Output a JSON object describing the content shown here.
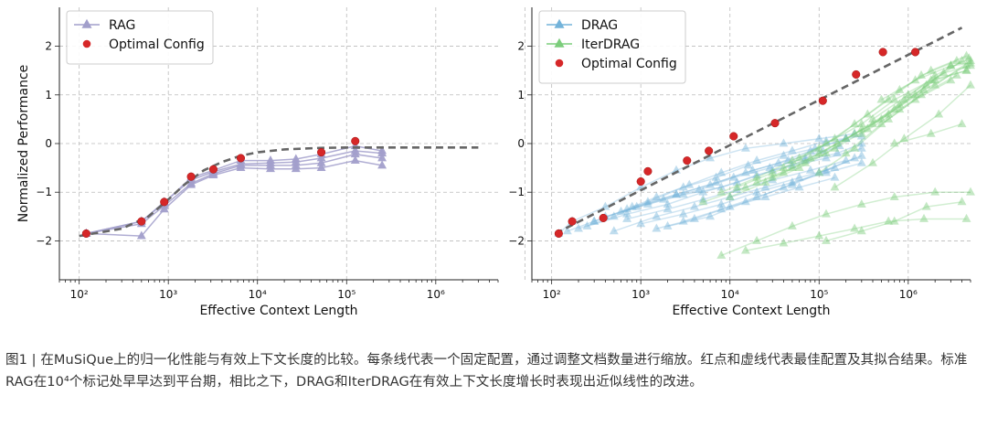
{
  "caption": "图1 | 在MuSiQue上的归一化性能与有效上下文长度的比较。每条线代表一个固定配置，通过调整文档数量进行缩放。红点和虚线代表最佳配置及其拟合结果。标准RAG在10⁴个标记处早早达到平台期，相比之下，DRAG和IterDRAG在有效上下文长度增长时表现出近似线性的改进。",
  "colors": {
    "rag": "#a29fcb",
    "drag": "#73b3da",
    "iterdrag": "#7ccd7c",
    "optimal": "#d62728",
    "fit": "#666666"
  },
  "chart_data": [
    {
      "type": "line",
      "xlabel": "Effective Context Length",
      "ylabel": "Normalized Performance",
      "xscale": "log",
      "xticks": [
        "10²",
        "10³",
        "10⁴",
        "10⁵",
        "10⁶"
      ],
      "yticks": [
        "−2",
        "−1",
        "0",
        "1",
        "2"
      ],
      "ylim": [
        -2.8,
        2.8
      ],
      "xlim": [
        60,
        5000000
      ],
      "grid": true,
      "legend": {
        "position": "top-left",
        "entries": [
          "RAG",
          "Optimal Config"
        ]
      },
      "series": [
        {
          "name": "RAG",
          "lines": [
            {
              "x": [
                120,
                500,
                900,
                1800,
                3200,
                6500,
                14000,
                27000,
                52000,
                125000,
                250000
              ],
              "y": [
                -1.85,
                -1.9,
                -1.35,
                -0.85,
                -0.65,
                -0.5,
                -0.52,
                -0.52,
                -0.5,
                -0.35,
                -0.45
              ]
            },
            {
              "x": [
                120,
                500,
                900,
                1800,
                3200,
                6500,
                14000,
                27000,
                52000,
                125000,
                250000
              ],
              "y": [
                -1.85,
                -1.65,
                -1.28,
                -0.82,
                -0.62,
                -0.45,
                -0.45,
                -0.45,
                -0.4,
                -0.22,
                -0.3
              ]
            },
            {
              "x": [
                120,
                500,
                900,
                1800,
                3200,
                6500,
                14000,
                27000,
                52000,
                125000,
                250000
              ],
              "y": [
                -1.85,
                -1.6,
                -1.2,
                -0.75,
                -0.58,
                -0.42,
                -0.4,
                -0.38,
                -0.3,
                -0.15,
                -0.2
              ]
            },
            {
              "x": [
                120,
                500,
                900,
                1800,
                3200,
                6500,
                14000,
                27000,
                52000,
                125000,
                250000
              ],
              "y": [
                -1.85,
                -1.6,
                -1.22,
                -0.7,
                -0.55,
                -0.35,
                -0.35,
                -0.32,
                -0.22,
                -0.05,
                -0.15
              ]
            }
          ]
        }
      ],
      "optimal": {
        "name": "Optimal Config",
        "x": [
          120,
          500,
          900,
          1800,
          3200,
          6500,
          52000,
          125000
        ],
        "y": [
          -1.85,
          -1.6,
          -1.2,
          -0.68,
          -0.53,
          -0.3,
          -0.18,
          0.05
        ]
      },
      "fit": {
        "x": [
          100,
          300,
          600,
          1000,
          1500,
          2500,
          4000,
          6500,
          10000,
          20000,
          50000,
          100000,
          500000,
          3000000
        ],
        "y": [
          -1.9,
          -1.75,
          -1.5,
          -1.15,
          -0.85,
          -0.55,
          -0.38,
          -0.25,
          -0.18,
          -0.12,
          -0.09,
          -0.08,
          -0.08,
          -0.08
        ]
      }
    },
    {
      "type": "line",
      "xlabel": "Effective Context Length",
      "ylabel": "",
      "xscale": "log",
      "xticks": [
        "10²",
        "10³",
        "10⁴",
        "10⁵",
        "10⁶"
      ],
      "yticks": [
        "−2",
        "−1",
        "0",
        "1",
        "2"
      ],
      "ylim": [
        -2.8,
        2.8
      ],
      "xlim": [
        60,
        5000000
      ],
      "grid": true,
      "legend": {
        "position": "top-left",
        "entries": [
          "DRAG",
          "IterDRAG",
          "Optimal Config"
        ]
      },
      "series": [
        {
          "name": "DRAG",
          "lines": [
            {
              "x": [
                120,
                170,
                400,
                1000,
                2500,
                6000,
                15000,
                40000,
                100000,
                250000
              ],
              "y": [
                -1.85,
                -1.6,
                -1.3,
                -0.9,
                -0.55,
                -0.3,
                -0.1,
                0.0,
                0.1,
                0.2
              ]
            },
            {
              "x": [
                150,
                300,
                700,
                1500,
                3500,
                8000,
                20000,
                50000,
                120000,
                300000
              ],
              "y": [
                -1.8,
                -1.6,
                -1.35,
                -1.1,
                -0.85,
                -0.6,
                -0.35,
                -0.15,
                0.05,
                0.15
              ]
            },
            {
              "x": [
                200,
                500,
                1200,
                3000,
                7000,
                16000,
                40000,
                90000,
                200000
              ],
              "y": [
                -1.75,
                -1.5,
                -1.2,
                -0.9,
                -0.7,
                -0.45,
                -0.25,
                -0.1,
                0.1
              ]
            },
            {
              "x": [
                250,
                700,
                2000,
                5000,
                12000,
                30000,
                70000,
                160000,
                300000
              ],
              "y": [
                -1.7,
                -1.45,
                -1.25,
                -1.0,
                -0.8,
                -0.55,
                -0.35,
                -0.2,
                0.0
              ]
            },
            {
              "x": [
                300,
                900,
                2500,
                6000,
                15000,
                35000,
                80000,
                200000
              ],
              "y": [
                -1.6,
                -1.3,
                -1.05,
                -0.85,
                -0.6,
                -0.4,
                -0.15,
                0.1
              ]
            },
            {
              "x": [
                400,
                1200,
                3000,
                8000,
                20000,
                50000,
                120000,
                300000
              ],
              "y": [
                -1.5,
                -1.25,
                -1.05,
                -0.9,
                -0.65,
                -0.45,
                -0.3,
                -0.1
              ]
            },
            {
              "x": [
                500,
                1500,
                4000,
                10000,
                25000,
                60000,
                150000
              ],
              "y": [
                -1.8,
                -1.5,
                -1.3,
                -1.1,
                -0.9,
                -0.7,
                -0.5
              ]
            },
            {
              "x": [
                700,
                2000,
                5000,
                12000,
                30000,
                80000,
                200000
              ],
              "y": [
                -1.55,
                -1.35,
                -1.15,
                -0.95,
                -0.75,
                -0.55,
                -0.35
              ]
            },
            {
              "x": [
                1000,
                3000,
                8000,
                20000,
                50000,
                120000,
                300000
              ],
              "y": [
                -1.65,
                -1.45,
                -1.25,
                -1.0,
                -0.8,
                -0.6,
                -0.4
              ]
            },
            {
              "x": [
                1500,
                4000,
                10000,
                25000,
                60000,
                150000
              ],
              "y": [
                -1.75,
                -1.55,
                -1.3,
                -1.1,
                -0.9,
                -0.7
              ]
            },
            {
              "x": [
                2000,
                6000,
                15000,
                40000,
                100000,
                250000
              ],
              "y": [
                -1.7,
                -1.5,
                -1.2,
                -0.9,
                -0.6,
                -0.3
              ]
            },
            {
              "x": [
                3000,
                8000,
                20000,
                50000,
                120000,
                300000
              ],
              "y": [
                -1.6,
                -1.35,
                -1.1,
                -0.85,
                -0.55,
                -0.25
              ]
            },
            {
              "x": [
                800,
                2500,
                7000,
                18000,
                45000,
                110000
              ],
              "y": [
                -1.3,
                -1.05,
                -0.8,
                -0.55,
                -0.35,
                -0.15
              ]
            },
            {
              "x": [
                600,
                1800,
                4500,
                11000,
                28000,
                70000,
                170000
              ],
              "y": [
                -1.4,
                -1.15,
                -0.95,
                -0.7,
                -0.5,
                -0.3,
                -0.05
              ]
            }
          ]
        },
        {
          "name": "IterDRAG",
          "lines": [
            {
              "x": [
                8000,
                20000,
                50000,
                120000,
                300000,
                700000,
                2000000,
                5000000
              ],
              "y": [
                -2.3,
                -2.0,
                -1.7,
                -1.45,
                -1.25,
                -1.1,
                -1.0,
                -1.0
              ]
            },
            {
              "x": [
                15000,
                40000,
                100000,
                250000,
                600000,
                1500000,
                4500000
              ],
              "y": [
                -2.2,
                -2.05,
                -1.9,
                -1.75,
                -1.6,
                -1.55,
                -1.55
              ]
            },
            {
              "x": [
                120000,
                300000,
                700000,
                1600000,
                4000000
              ],
              "y": [
                -2.0,
                -1.8,
                -1.6,
                -1.3,
                -1.2
              ]
            },
            {
              "x": [
                5000,
                15000,
                40000,
                100000,
                250000,
                600000,
                1500000,
                4500000
              ],
              "y": [
                -1.2,
                -0.9,
                -0.6,
                -0.2,
                0.2,
                0.6,
                1.1,
                1.6
              ]
            },
            {
              "x": [
                8000,
                20000,
                50000,
                120000,
                300000,
                700000,
                1800000,
                4500000
              ],
              "y": [
                -1.0,
                -0.7,
                -0.35,
                0.0,
                0.4,
                0.9,
                1.3,
                1.5
              ]
            },
            {
              "x": [
                12000,
                30000,
                80000,
                200000,
                500000,
                1200000,
                3000000
              ],
              "y": [
                -0.9,
                -0.6,
                -0.3,
                0.1,
                0.5,
                1.0,
                1.6
              ]
            },
            {
              "x": [
                20000,
                50000,
                120000,
                300000,
                700000,
                1600000,
                4000000
              ],
              "y": [
                -0.8,
                -0.5,
                -0.2,
                0.3,
                0.7,
                1.2,
                1.7
              ]
            },
            {
              "x": [
                30000,
                70000,
                160000,
                400000,
                900000,
                2000000,
                4800000
              ],
              "y": [
                -0.7,
                -0.4,
                0.0,
                0.4,
                0.9,
                1.4,
                1.75
              ]
            },
            {
              "x": [
                10000,
                25000,
                60000,
                150000,
                350000,
                800000,
                2000000,
                4500000
              ],
              "y": [
                -1.1,
                -0.8,
                -0.5,
                -0.1,
                0.3,
                0.8,
                1.3,
                1.5
              ]
            },
            {
              "x": [
                40000,
                100000,
                250000,
                600000,
                1400000,
                3500000
              ],
              "y": [
                -0.5,
                -0.1,
                0.4,
                0.9,
                1.4,
                1.7
              ]
            },
            {
              "x": [
                60000,
                150000,
                350000,
                800000,
                1800000,
                4500000
              ],
              "y": [
                -0.3,
                0.1,
                0.6,
                1.1,
                1.5,
                1.8
              ]
            },
            {
              "x": [
                100000,
                250000,
                600000,
                1400000,
                3500000
              ],
              "y": [
                -0.6,
                -0.1,
                0.5,
                1.0,
                1.4
              ]
            },
            {
              "x": [
                150000,
                400000,
                900000,
                2200000,
                5000000
              ],
              "y": [
                -0.9,
                -0.4,
                0.1,
                0.6,
                1.2
              ]
            },
            {
              "x": [
                200000,
                500000,
                1200000,
                3000000
              ],
              "y": [
                -0.2,
                0.4,
                0.9,
                1.3
              ]
            },
            {
              "x": [
                300000,
                800000,
                2000000,
                5000000
              ],
              "y": [
                0.2,
                0.7,
                1.2,
                1.7
              ]
            },
            {
              "x": [
                500000,
                1200000,
                3000000,
                5000000
              ],
              "y": [
                0.9,
                1.3,
                1.6,
                1.65
              ]
            },
            {
              "x": [
                700000,
                1800000,
                4000000
              ],
              "y": [
                0.0,
                0.2,
                0.4
              ]
            },
            {
              "x": [
                400000,
                1000000,
                2500000,
                5000000
              ],
              "y": [
                0.5,
                1.0,
                1.45,
                1.6
              ]
            }
          ]
        }
      ],
      "optimal": {
        "name": "Optimal Config",
        "x": [
          120,
          170,
          380,
          1000,
          1200,
          3300,
          5800,
          11000,
          32000,
          110000,
          260000,
          520000,
          1200000
        ],
        "y": [
          -1.85,
          -1.6,
          -1.53,
          -0.78,
          -0.57,
          -0.35,
          -0.15,
          0.15,
          0.42,
          0.88,
          1.42,
          1.88,
          1.88
        ]
      },
      "fit": {
        "x": [
          110,
          4000000
        ],
        "y": [
          -1.85,
          2.38
        ]
      }
    }
  ]
}
